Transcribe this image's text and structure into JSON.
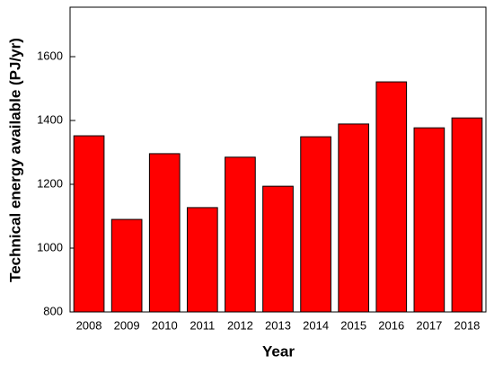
{
  "chart_data": {
    "type": "bar",
    "x_label": "Year",
    "y_label": "Technical energy available (PJ/yr)",
    "categories": [
      "2008",
      "2009",
      "2010",
      "2011",
      "2012",
      "2013",
      "2014",
      "2015",
      "2016",
      "2017",
      "2018"
    ],
    "values": [
      1352,
      1090,
      1296,
      1127,
      1285,
      1194,
      1349,
      1389,
      1521,
      1377,
      1408
    ],
    "color": "#ff0000",
    "ylim": [
      800,
      1755
    ],
    "yticks": [
      800,
      1000,
      1200,
      1400,
      1600
    ],
    "grid": false
  }
}
